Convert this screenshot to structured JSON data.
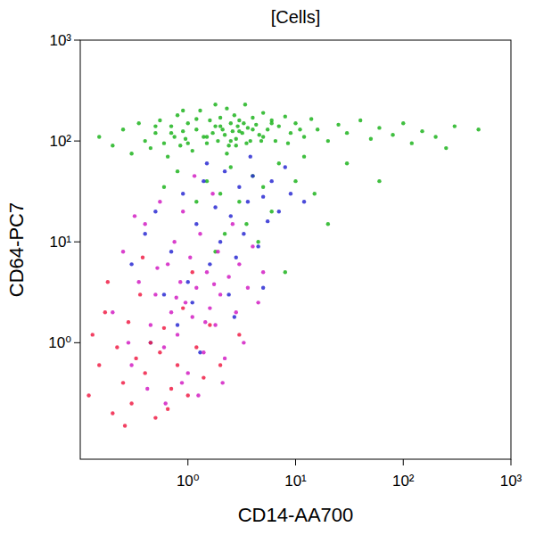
{
  "chart_data": {
    "type": "scatter",
    "title": "[Cells]",
    "x_label": "CD14-AA700",
    "y_label": "CD64-PC7",
    "log": true,
    "grid": false,
    "xlim": [
      0.1,
      1000
    ],
    "ylim": [
      0.07,
      1000
    ],
    "xticks": [
      {
        "value": 1,
        "label": "10⁰"
      },
      {
        "value": 10,
        "label": "10¹"
      },
      {
        "value": 100,
        "label": "10²"
      },
      {
        "value": 1000,
        "label": "10³"
      }
    ],
    "yticks": [
      {
        "value": 1,
        "label": "10⁰"
      },
      {
        "value": 10,
        "label": "10¹"
      },
      {
        "value": 100,
        "label": "10²"
      },
      {
        "value": 1000,
        "label": "10³"
      }
    ],
    "series": [
      {
        "color": "#1fb41f",
        "x": [
          0.15,
          0.2,
          0.25,
          0.3,
          0.35,
          0.4,
          0.45,
          0.5,
          0.55,
          0.6,
          0.65,
          0.7,
          0.75,
          0.8,
          0.85,
          0.9,
          0.95,
          1.0,
          1.1,
          1.2,
          1.3,
          1.4,
          1.5,
          1.6,
          1.7,
          1.8,
          1.9,
          2.0,
          2.1,
          2.2,
          2.3,
          2.4,
          2.5,
          2.6,
          2.7,
          2.8,
          2.9,
          3.0,
          3.2,
          3.4,
          3.6,
          3.8,
          4.0,
          4.3,
          4.6,
          5.0,
          5.5,
          6.0,
          6.5,
          7.0,
          8.0,
          9.0,
          10,
          12,
          14,
          16,
          20,
          25,
          30,
          40,
          50,
          60,
          80,
          100,
          120,
          150,
          200,
          250,
          300,
          500,
          1.5,
          2.0,
          2.5,
          3.0,
          4.0,
          5.0,
          6.0,
          1.2,
          0.8,
          7,
          10,
          15,
          3.5,
          2.2,
          4.5,
          1.8,
          20,
          30,
          60,
          8,
          0.6,
          12,
          1.0,
          1.5,
          2.0,
          2.5,
          3.0,
          3.5,
          4.0,
          5.0,
          6.0,
          0.7,
          0.5,
          1.2,
          2.8,
          3.3,
          4.8,
          8.5,
          11,
          1.8,
          2.3,
          0.9
        ],
        "values": [
          110,
          90,
          130,
          75,
          150,
          100,
          85,
          120,
          160,
          95,
          70,
          140,
          110,
          180,
          90,
          125,
          105,
          150,
          80,
          130,
          200,
          110,
          95,
          160,
          120,
          140,
          100,
          170,
          130,
          115,
          210,
          90,
          150,
          125,
          180,
          105,
          140,
          160,
          120,
          230,
          135,
          100,
          170,
          145,
          115,
          190,
          130,
          160,
          100,
          140,
          175,
          120,
          150,
          110,
          165,
          130,
          100,
          145,
          120,
          160,
          105,
          135,
          115,
          150,
          95,
          125,
          110,
          85,
          140,
          130,
          40,
          30,
          55,
          25,
          45,
          35,
          20,
          25,
          50,
          60,
          40,
          30,
          15,
          12,
          10,
          8,
          15,
          60,
          40,
          5,
          35,
          70,
          95,
          110,
          140,
          100,
          125,
          95,
          130,
          110,
          150,
          120,
          140,
          165,
          90,
          150,
          100,
          95,
          130,
          230,
          75,
          200
        ]
      },
      {
        "color": "#2a2ad2",
        "x": [
          0.5,
          0.7,
          0.9,
          1.0,
          1.2,
          1.4,
          1.6,
          1.8,
          2.0,
          2.2,
          2.5,
          2.8,
          3.0,
          3.3,
          3.6,
          4.0,
          4.5,
          5.0,
          5.5,
          6.0,
          7.0,
          8.0,
          0.6,
          0.8,
          1.1,
          0.4,
          1.3,
          2.4,
          0.3,
          9,
          1.5,
          3.8,
          0.45,
          2.7,
          12,
          5
        ],
        "values": [
          20,
          8,
          30,
          4,
          15,
          40,
          6,
          22,
          10,
          50,
          18,
          7,
          35,
          12,
          25,
          45,
          9,
          28,
          16,
          40,
          20,
          55,
          3,
          1.5,
          2.5,
          12,
          0.8,
          3,
          6,
          30,
          60,
          70,
          1,
          1.8,
          25,
          3.5
        ]
      },
      {
        "color": "#d21ec3",
        "x": [
          0.2,
          0.25,
          0.3,
          0.35,
          0.4,
          0.45,
          0.5,
          0.55,
          0.6,
          0.65,
          0.7,
          0.75,
          0.8,
          0.85,
          0.9,
          0.95,
          1.0,
          1.05,
          1.1,
          1.2,
          1.3,
          1.4,
          1.5,
          1.6,
          1.7,
          1.8,
          1.9,
          2.0,
          2.2,
          2.4,
          2.6,
          2.8,
          3.0,
          3.3,
          3.6,
          4.0,
          4.5,
          5.0,
          0.28,
          0.42,
          0.62,
          0.88,
          1.25,
          0.32,
          1.15,
          2.1,
          0.78,
          1.45,
          0.52,
          1.75
        ],
        "values": [
          2,
          8,
          0.6,
          4,
          15,
          1.5,
          3,
          25,
          0.9,
          6,
          2,
          10,
          1.2,
          4,
          20,
          2.5,
          0.5,
          7,
          1.8,
          3.5,
          12,
          0.8,
          5,
          2.2,
          30,
          1.5,
          8,
          3,
          0.7,
          4.5,
          15,
          2,
          6,
          1,
          3.5,
          9,
          2.5,
          5,
          1,
          0.35,
          0.25,
          0.4,
          0.3,
          18,
          45,
          0.4,
          2.8,
          1.6,
          5.5,
          3.8
        ]
      },
      {
        "color": "#f01e46",
        "x": [
          0.12,
          0.13,
          0.15,
          0.17,
          0.2,
          0.22,
          0.25,
          0.28,
          0.3,
          0.33,
          0.36,
          0.4,
          0.45,
          0.5,
          0.55,
          0.6,
          0.7,
          0.8,
          0.9,
          1.0,
          1.2,
          1.4,
          1.6,
          2.0,
          0.18,
          0.26,
          0.65,
          1.1,
          0.38,
          3.0
        ],
        "values": [
          0.3,
          1.2,
          0.6,
          2,
          0.2,
          0.9,
          0.4,
          1.6,
          0.25,
          0.7,
          3,
          0.5,
          1,
          0.18,
          0.8,
          1.4,
          0.35,
          0.6,
          2.2,
          0.3,
          0.9,
          0.45,
          1.5,
          0.6,
          4,
          0.15,
          0.22,
          5,
          7,
          1.2
        ]
      }
    ]
  }
}
